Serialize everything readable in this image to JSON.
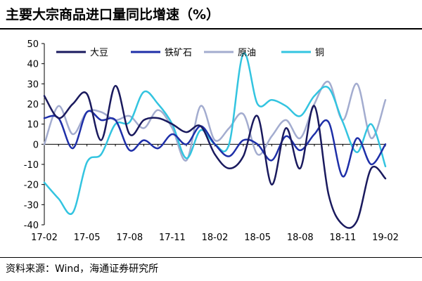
{
  "header": {
    "title": "主要大宗商品进口量同比增速（%）"
  },
  "footer": {
    "source": "资料来源：Wind，海通证券研究所"
  },
  "chart_data": {
    "type": "line",
    "title": "主要大宗商品进口量同比增速（%）",
    "xlabel": "",
    "ylabel": "",
    "ylim": [
      -40,
      50
    ],
    "yticks": [
      50,
      40,
      30,
      20,
      10,
      0,
      -10,
      -20,
      -30,
      -40
    ],
    "xtick_labels": [
      "17-02",
      "17-05",
      "17-08",
      "17-11",
      "18-02",
      "18-05",
      "18-08",
      "18-11",
      "19-02"
    ],
    "x": [
      "17-02",
      "17-03",
      "17-04",
      "17-05",
      "17-06",
      "17-07",
      "17-08",
      "17-09",
      "17-10",
      "17-11",
      "17-12",
      "18-01",
      "18-02",
      "18-03",
      "18-04",
      "18-05",
      "18-06",
      "18-07",
      "18-08",
      "18-09",
      "18-10",
      "18-11",
      "18-12",
      "19-01",
      "19-02"
    ],
    "grid": false,
    "legend_position": "top",
    "series": [
      {
        "name": "大豆",
        "color": "#1a1a5e",
        "values": [
          24,
          13,
          20,
          25,
          2,
          29,
          5,
          12,
          13,
          10,
          6,
          9,
          -5,
          -12,
          -6,
          14,
          -20,
          8,
          -12,
          19,
          -25,
          -40,
          -38,
          -12,
          -17
        ]
      },
      {
        "name": "铁矿石",
        "color": "#1e2fa8",
        "values": [
          13,
          13,
          -2,
          16,
          12,
          12,
          -3,
          2,
          -2,
          5,
          0,
          9,
          0,
          -6,
          2,
          0,
          -8,
          4,
          -3,
          5,
          11,
          -16,
          3,
          -10,
          0
        ]
      },
      {
        "name": "原油",
        "color": "#a3accf",
        "values": [
          0,
          19,
          5,
          16,
          16,
          12,
          14,
          8,
          17,
          8,
          -8,
          19,
          2,
          8,
          15,
          -5,
          4,
          12,
          3,
          20,
          31,
          12,
          30,
          3,
          22
        ]
      },
      {
        "name": "铜",
        "color": "#33c4e0",
        "values": [
          -19,
          -27,
          -34,
          -9,
          -5,
          10,
          11,
          26,
          20,
          10,
          -7,
          7,
          0,
          0,
          45,
          20,
          22,
          19,
          14,
          24,
          28,
          11,
          -4,
          10,
          -11
        ]
      }
    ]
  }
}
